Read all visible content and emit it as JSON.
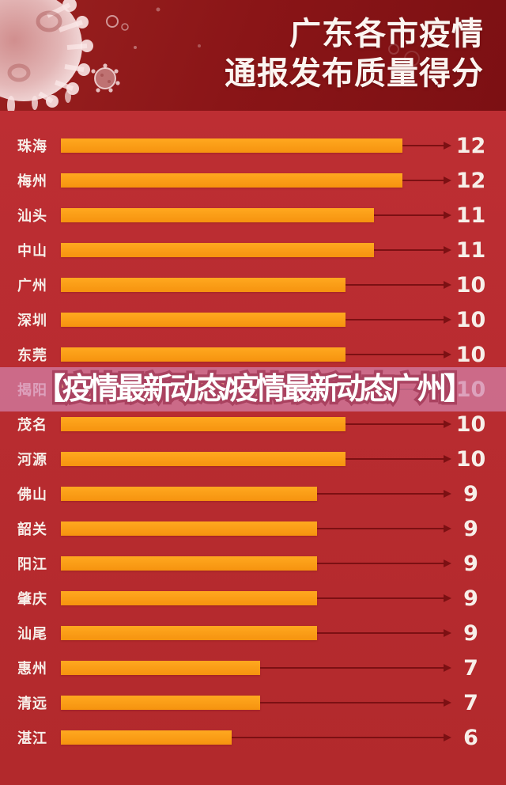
{
  "header": {
    "title_line1": "广东各市疫情",
    "title_line2": "通报发布质量得分"
  },
  "watermark": {
    "text": "【疫情最新动态/疫情最新动态广州】"
  },
  "chart_data": {
    "type": "bar",
    "orientation": "horizontal",
    "title": "广东各市疫情通报发布质量得分",
    "categories": [
      "珠海",
      "梅州",
      "汕头",
      "中山",
      "广州",
      "深圳",
      "东莞",
      "揭阳",
      "茂名",
      "河源",
      "佛山",
      "韶关",
      "阳江",
      "肇庆",
      "汕尾",
      "惠州",
      "清远",
      "湛江"
    ],
    "values": [
      12,
      12,
      11,
      11,
      10,
      10,
      10,
      10,
      10,
      10,
      9,
      9,
      9,
      9,
      9,
      7,
      7,
      6
    ],
    "value_axis_range": [
      0,
      13.72
    ],
    "grid": false,
    "legend": false,
    "data_labels": "right-of-bar-with-arrow"
  },
  "colors": {
    "header_bg": "#8a1517",
    "chart_bg": "#b62b2f",
    "bar": "#fb9e17",
    "arrow": "#7c1013",
    "label_text": "#f7eee8",
    "value_text": "#f7efe9",
    "title_text": "#fbf5f1",
    "banner_bg": "rgba(210,130,170,0.72)",
    "banner_text": "#ffffff",
    "banner_outline": "#aa4260"
  }
}
